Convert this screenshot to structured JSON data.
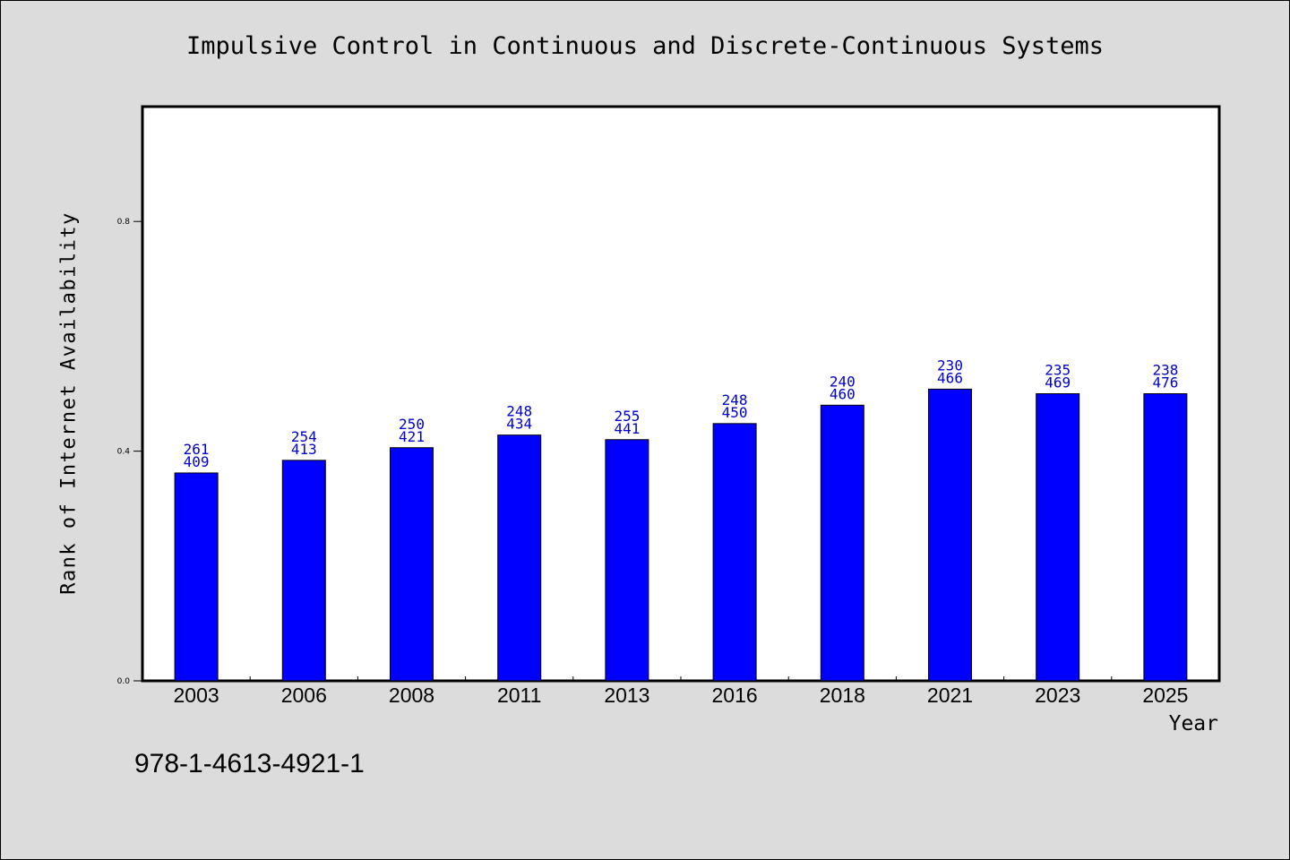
{
  "chart_data": {
    "type": "bar",
    "title": "Impulsive Control in Continuous and Discrete-Continuous Systems",
    "xlabel": "Year",
    "ylabel": "Rank of Internet Availability",
    "categories": [
      "2003",
      "2006",
      "2008",
      "2011",
      "2013",
      "2016",
      "2018",
      "2021",
      "2023",
      "2025"
    ],
    "series": [
      {
        "values": [
          0.362,
          0.384,
          0.406,
          0.428,
          0.42,
          0.448,
          0.48,
          0.508,
          0.5,
          0.5
        ]
      }
    ],
    "bar_labels_top": [
      "261",
      "254",
      "250",
      "248",
      "255",
      "248",
      "240",
      "230",
      "235",
      "238"
    ],
    "bar_labels_bottom": [
      "409",
      "413",
      "421",
      "434",
      "441",
      "450",
      "460",
      "466",
      "469",
      "476"
    ],
    "ylim": [
      0,
      1.0
    ],
    "yticks": [
      "0.0",
      "0.4",
      "0.8"
    ],
    "grid": false,
    "bar_color": "#0000ff",
    "label_color": "#0000cc"
  },
  "footer": {
    "isbn": "978-1-4613-4921-1"
  }
}
